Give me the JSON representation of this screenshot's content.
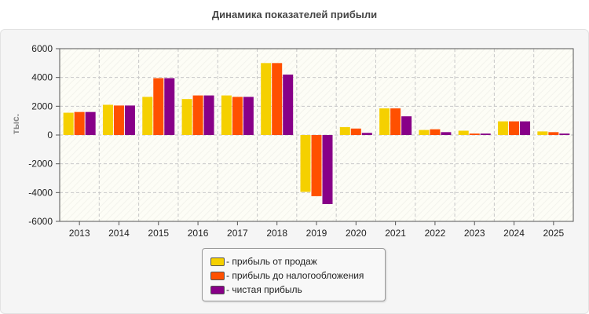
{
  "chart_data": {
    "type": "bar",
    "title": "Динамика показателей прибыли",
    "ylabel": "тыс.",
    "xlabel": "",
    "categories": [
      "2013",
      "2014",
      "2015",
      "2016",
      "2017",
      "2018",
      "2019",
      "2020",
      "2021",
      "2022",
      "2023",
      "2024",
      "2025"
    ],
    "series": [
      {
        "name": "- прибыль от продаж",
        "color": "#f5d000",
        "values": [
          1550,
          2100,
          2650,
          2500,
          2750,
          5000,
          -3950,
          550,
          1850,
          350,
          300,
          950,
          250
        ]
      },
      {
        "name": "- прибыль до налогообложения",
        "color": "#ff5000",
        "values": [
          1600,
          2050,
          3950,
          2750,
          2650,
          5000,
          -4250,
          450,
          1850,
          400,
          100,
          950,
          200
        ]
      },
      {
        "name": "- чистая прибыль",
        "color": "#880088",
        "values": [
          1600,
          2050,
          3950,
          2750,
          2650,
          4200,
          -4800,
          150,
          1300,
          200,
          100,
          950,
          100
        ]
      }
    ],
    "ylim": [
      -6000,
      6000
    ],
    "yticks": [
      "6000",
      "4000",
      "2000",
      "0",
      "-2000",
      "-4000",
      "-6000"
    ],
    "grid": true,
    "legend_position": "bottom"
  }
}
